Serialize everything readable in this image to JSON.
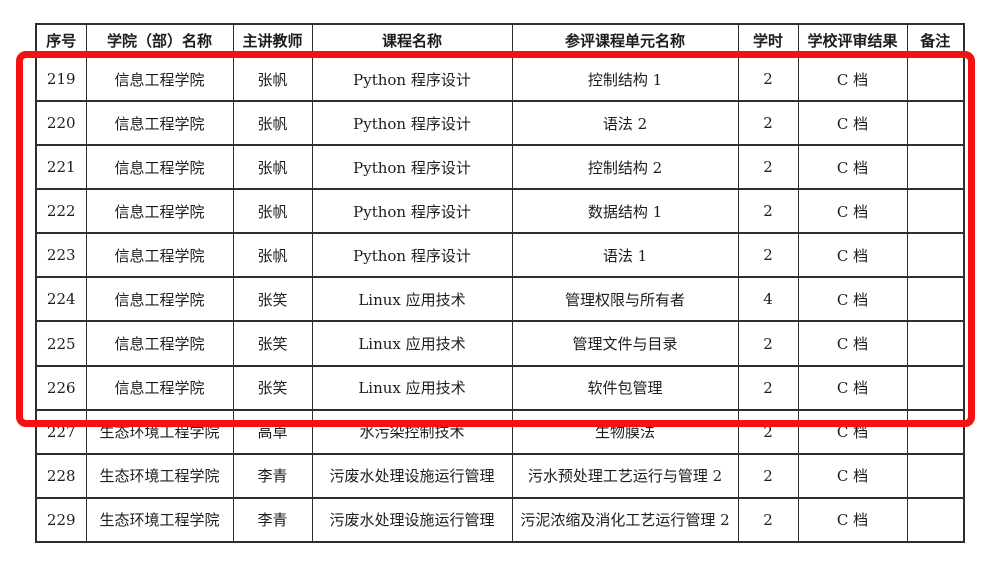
{
  "table": {
    "columns": [
      {
        "key": "index",
        "label": "序号"
      },
      {
        "key": "college",
        "label": "学院（部）名称"
      },
      {
        "key": "teacher",
        "label": "主讲教师"
      },
      {
        "key": "course",
        "label": "课程名称"
      },
      {
        "key": "unit",
        "label": "参评课程单元名称"
      },
      {
        "key": "hours",
        "label": "学时"
      },
      {
        "key": "result",
        "label": "学校评审结果"
      },
      {
        "key": "remark",
        "label": "备注"
      }
    ],
    "rows": [
      [
        "219",
        "信息工程学院",
        "张帆",
        "Python 程序设计",
        "控制结构 1",
        "2",
        "C 档",
        ""
      ],
      [
        "220",
        "信息工程学院",
        "张帆",
        "Python 程序设计",
        "语法 2",
        "2",
        "C 档",
        ""
      ],
      [
        "221",
        "信息工程学院",
        "张帆",
        "Python 程序设计",
        "控制结构 2",
        "2",
        "C 档",
        ""
      ],
      [
        "222",
        "信息工程学院",
        "张帆",
        "Python 程序设计",
        "数据结构 1",
        "2",
        "C 档",
        ""
      ],
      [
        "223",
        "信息工程学院",
        "张帆",
        "Python 程序设计",
        "语法 1",
        "2",
        "C 档",
        ""
      ],
      [
        "224",
        "信息工程学院",
        "张笑",
        "Linux 应用技术",
        "管理权限与所有者",
        "4",
        "C 档",
        ""
      ],
      [
        "225",
        "信息工程学院",
        "张笑",
        "Linux 应用技术",
        "管理文件与目录",
        "2",
        "C 档",
        ""
      ],
      [
        "226",
        "信息工程学院",
        "张笑",
        "Linux 应用技术",
        "软件包管理",
        "2",
        "C 档",
        ""
      ],
      [
        "227",
        "生态环境工程学院",
        "高卓",
        "水污染控制技术",
        "生物膜法",
        "2",
        "C 档",
        ""
      ],
      [
        "228",
        "生态环境工程学院",
        "李青",
        "污废水处理设施运行管理",
        "污水预处理工艺运行与管理 2",
        "2",
        "C 档",
        ""
      ],
      [
        "229",
        "生态环境工程学院",
        "李青",
        "污废水处理设施运行管理",
        "污泥浓缩及消化工艺运行管理 2",
        "2",
        "C 档",
        ""
      ]
    ]
  },
  "highlight": {
    "rows_from": "219",
    "rows_to": "226",
    "color": "#f51111"
  }
}
